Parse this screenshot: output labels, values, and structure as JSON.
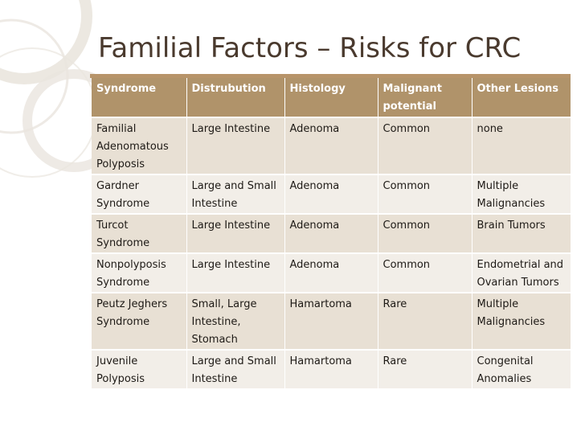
{
  "slide": {
    "title": "Familial Factors – Risks for CRC"
  },
  "colors": {
    "header_bg": "#b0936a",
    "row_bg": "#e8e0d4",
    "row_alt_bg": "#f2eee8",
    "title_rule": "#b7946a",
    "title_text": "#4a3a2e"
  },
  "table": {
    "headers": [
      "Syndrome",
      "Distrubution",
      "Histology",
      "Malignant potential",
      "Other Lesions"
    ],
    "rows": [
      [
        "Familial Adenomatous Polyposis",
        "Large Intestine",
        "Adenoma",
        "Common",
        "none"
      ],
      [
        "Gardner Syndrome",
        "Large and Small Intestine",
        "Adenoma",
        "Common",
        "Multiple Malignancies"
      ],
      [
        "Turcot Syndrome",
        "Large Intestine",
        "Adenoma",
        "Common",
        "Brain Tumors"
      ],
      [
        "Nonpolyposis Syndrome",
        "Large Intestine",
        "Adenoma",
        "Common",
        "Endometrial and Ovarian Tumors"
      ],
      [
        "Peutz Jeghers Syndrome",
        "Small, Large Intestine, Stomach",
        "Hamartoma",
        "Rare",
        "Multiple Malignancies"
      ],
      [
        "Juvenile Polyposis",
        "Large and Small Intestine",
        "Hamartoma",
        "Rare",
        "Congenital Anomalies"
      ]
    ]
  }
}
